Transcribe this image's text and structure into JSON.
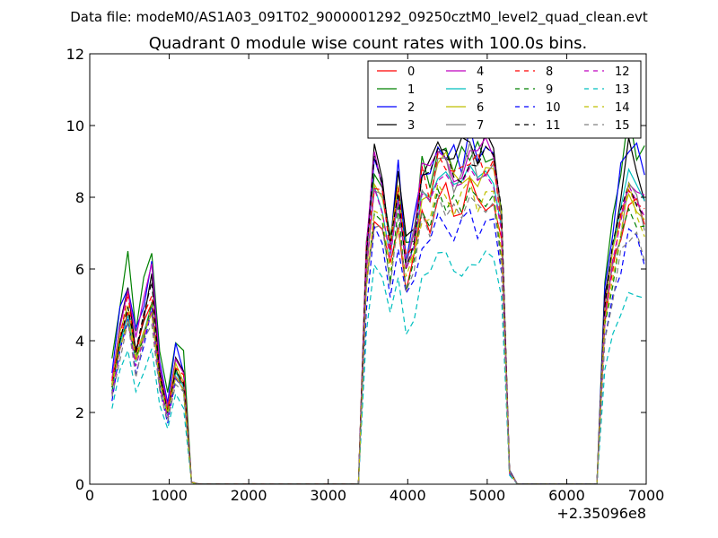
{
  "chart_data": {
    "type": "line",
    "suptitle": "Data file: modeM0/AS1A03_091T02_9000001292_09250cztM0_level2_quad_clean.evt",
    "title": "Quadrant 0 module wise count rates with 100.0s bins.",
    "xlabel": "",
    "ylabel": "",
    "x_offset_label": "+2.35096e8",
    "xlim": [
      0,
      7000
    ],
    "ylim": [
      0,
      12
    ],
    "x_ticks": [
      0,
      1000,
      2000,
      3000,
      4000,
      5000,
      6000,
      7000
    ],
    "y_ticks": [
      0,
      2,
      4,
      6,
      8,
      10,
      12
    ],
    "grid": false,
    "legend_position": "top-right",
    "x": [
      280,
      380,
      480,
      580,
      680,
      780,
      880,
      980,
      1080,
      1180,
      1280,
      1380,
      1480,
      1580,
      1680,
      1780,
      1880,
      1980,
      2080,
      2180,
      2280,
      2380,
      2480,
      2580,
      2680,
      2780,
      2880,
      2980,
      3080,
      3180,
      3280,
      3380,
      3480,
      3580,
      3680,
      3780,
      3880,
      3980,
      4080,
      4180,
      4280,
      4380,
      4480,
      4580,
      4680,
      4780,
      4880,
      4980,
      5080,
      5180,
      5280,
      5380,
      5480,
      5580,
      5680,
      5780,
      5880,
      5980,
      6080,
      6180,
      6280,
      6380,
      6480,
      6580,
      6680,
      6780,
      6880,
      6980
    ],
    "shape": [
      0.52,
      0.78,
      0.94,
      0.68,
      0.84,
      1.0,
      0.56,
      0.38,
      0.62,
      0.54,
      0.01,
      0,
      0,
      0,
      0,
      0,
      0,
      0,
      0,
      0,
      0,
      0,
      0,
      0,
      0,
      0,
      0,
      0,
      0,
      0,
      0,
      0,
      0.68,
      0.94,
      0.86,
      0.72,
      0.9,
      0.68,
      0.75,
      0.92,
      0.9,
      0.96,
      0.98,
      0.94,
      0.95,
      1.0,
      0.96,
      0.98,
      0.94,
      0.8,
      0.04,
      0,
      0,
      0,
      0,
      0,
      0,
      0,
      0,
      0,
      0,
      0,
      0.55,
      0.75,
      0.88,
      1.0,
      0.95,
      0.9
    ],
    "series": [
      {
        "name": "0",
        "color": "#ff0000",
        "dash": "solid",
        "amp": [
          5.3,
          8.2,
          8.0
        ]
      },
      {
        "name": "1",
        "color": "#008000",
        "dash": "solid",
        "amp": [
          6.6,
          9.5,
          10.0
        ]
      },
      {
        "name": "2",
        "color": "#0000ff",
        "dash": "solid",
        "amp": [
          6.1,
          9.6,
          9.7
        ]
      },
      {
        "name": "3",
        "color": "#000000",
        "dash": "solid",
        "amp": [
          5.6,
          9.7,
          9.2
        ]
      },
      {
        "name": "4",
        "color": "#bf00bf",
        "dash": "solid",
        "amp": [
          5.9,
          9.4,
          8.8
        ]
      },
      {
        "name": "5",
        "color": "#00bfbf",
        "dash": "solid",
        "amp": [
          5.0,
          8.6,
          8.4
        ]
      },
      {
        "name": "6",
        "color": "#bfbf00",
        "dash": "solid",
        "amp": [
          5.2,
          9.0,
          8.4
        ]
      },
      {
        "name": "7",
        "color": "#808080",
        "dash": "solid",
        "amp": [
          5.0,
          9.1,
          8.2
        ]
      },
      {
        "name": "8",
        "color": "#ff0000",
        "dash": "dashed",
        "amp": [
          5.4,
          9.2,
          8.3
        ]
      },
      {
        "name": "9",
        "color": "#008000",
        "dash": "dashed",
        "amp": [
          5.0,
          8.2,
          7.7
        ]
      },
      {
        "name": "10",
        "color": "#0000ff",
        "dash": "dashed",
        "amp": [
          4.7,
          7.5,
          7.0
        ]
      },
      {
        "name": "11",
        "color": "#000000",
        "dash": "dashed",
        "amp": [
          5.4,
          9.3,
          8.6
        ]
      },
      {
        "name": "12",
        "color": "#bf00bf",
        "dash": "dashed",
        "amp": [
          4.8,
          8.4,
          8.0
        ]
      },
      {
        "name": "13",
        "color": "#00bfbf",
        "dash": "dashed",
        "amp": [
          3.9,
          6.4,
          5.6
        ]
      },
      {
        "name": "14",
        "color": "#bfbf00",
        "dash": "dashed",
        "amp": [
          5.0,
          8.3,
          8.0
        ]
      },
      {
        "name": "15",
        "color": "#808080",
        "dash": "dashed",
        "amp": [
          4.6,
          8.0,
          7.1
        ]
      }
    ]
  }
}
